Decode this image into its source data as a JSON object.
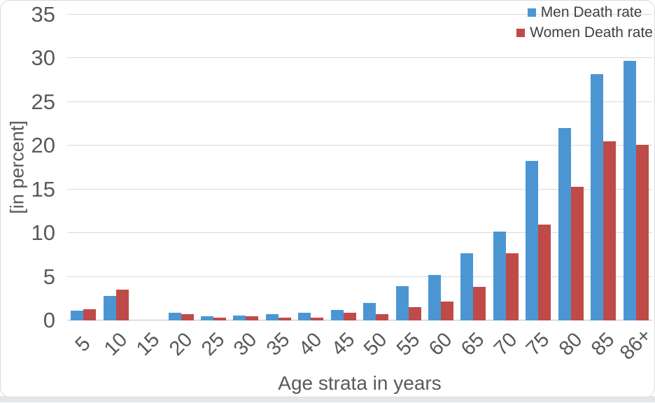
{
  "chart_data": {
    "type": "bar",
    "title": "",
    "xlabel": "Age strata in years",
    "ylabel": "[in percent]",
    "ylim": [
      0,
      35
    ],
    "yticks": [
      0,
      5,
      10,
      15,
      20,
      25,
      30,
      35
    ],
    "grid": true,
    "legend_position": "top-right",
    "categories": [
      "5",
      "10",
      "15",
      "20",
      "25",
      "30",
      "35",
      "40",
      "45",
      "50",
      "55",
      "60",
      "65",
      "70",
      "75",
      "80",
      "85",
      "86+"
    ],
    "series": [
      {
        "name": "Men Death rate",
        "color": "#4B96D2",
        "values": [
          1.1,
          2.8,
          0,
          0.9,
          0.5,
          0.6,
          0.75,
          0.85,
          1.2,
          2.0,
          3.9,
          5.2,
          7.7,
          10.2,
          18.3,
          22.0,
          28.2,
          29.7
        ]
      },
      {
        "name": "Women Death rate",
        "color": "#BE4B48",
        "values": [
          1.3,
          3.5,
          0,
          0.7,
          0.35,
          0.45,
          0.3,
          0.35,
          0.9,
          0.7,
          1.5,
          2.2,
          3.85,
          7.7,
          11.0,
          15.3,
          20.5,
          20.1
        ]
      }
    ]
  }
}
